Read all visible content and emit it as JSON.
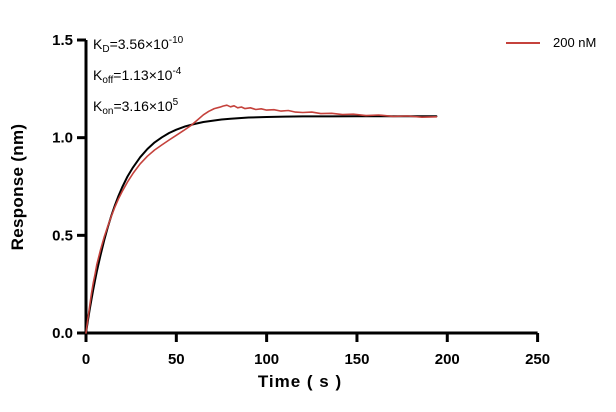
{
  "chart_data": {
    "type": "line",
    "title": "",
    "xlabel": "Time ( s )",
    "ylabel": "Response (nm)",
    "xlim": [
      0,
      250
    ],
    "ylim": [
      0,
      1.5
    ],
    "xticks": [
      "0",
      "50",
      "100",
      "150",
      "200",
      "250"
    ],
    "yticks": [
      "0.0",
      "0.5",
      "1.0",
      "1.5"
    ],
    "grid": false,
    "legend_position": "top-right",
    "axis_color": "#000000",
    "series": [
      {
        "name": "200 nM (observed)",
        "color": "#c5423c",
        "points": [
          [
            0,
            0
          ],
          [
            1,
            0.07
          ],
          [
            2,
            0.135
          ],
          [
            3,
            0.2
          ],
          [
            4,
            0.255
          ],
          [
            5,
            0.3
          ],
          [
            6,
            0.35
          ],
          [
            8,
            0.425
          ],
          [
            10,
            0.49
          ],
          [
            12,
            0.545
          ],
          [
            14,
            0.597
          ],
          [
            16,
            0.645
          ],
          [
            18,
            0.687
          ],
          [
            20,
            0.724
          ],
          [
            23,
            0.773
          ],
          [
            26,
            0.817
          ],
          [
            30,
            0.866
          ],
          [
            34,
            0.905
          ],
          [
            38,
            0.937
          ],
          [
            42,
            0.963
          ],
          [
            46,
            0.988
          ],
          [
            50,
            1.012
          ],
          [
            54,
            1.036
          ],
          [
            58,
            1.062
          ],
          [
            62,
            1.093
          ],
          [
            65,
            1.117
          ],
          [
            68,
            1.135
          ],
          [
            71,
            1.149
          ],
          [
            74,
            1.156
          ],
          [
            76,
            1.162
          ],
          [
            78,
            1.166
          ],
          [
            80,
            1.158
          ],
          [
            82,
            1.163
          ],
          [
            84,
            1.153
          ],
          [
            86,
            1.157
          ],
          [
            88,
            1.149
          ],
          [
            91,
            1.153
          ],
          [
            94,
            1.144
          ],
          [
            97,
            1.148
          ],
          [
            100,
            1.141
          ],
          [
            104,
            1.143
          ],
          [
            108,
            1.136
          ],
          [
            112,
            1.139
          ],
          [
            116,
            1.131
          ],
          [
            120,
            1.129
          ],
          [
            125,
            1.131
          ],
          [
            130,
            1.123
          ],
          [
            136,
            1.125
          ],
          [
            142,
            1.118
          ],
          [
            148,
            1.12
          ],
          [
            155,
            1.113
          ],
          [
            162,
            1.116
          ],
          [
            170,
            1.109
          ],
          [
            178,
            1.111
          ],
          [
            186,
            1.105
          ],
          [
            194,
            1.107
          ]
        ]
      },
      {
        "name": "Fitted curve",
        "color": "#000000",
        "points": [
          [
            0,
            0
          ],
          [
            1,
            0.06
          ],
          [
            2,
            0.117
          ],
          [
            3,
            0.17
          ],
          [
            4,
            0.221
          ],
          [
            5,
            0.269
          ],
          [
            6,
            0.315
          ],
          [
            8,
            0.398
          ],
          [
            10,
            0.473
          ],
          [
            12,
            0.54
          ],
          [
            14,
            0.6
          ],
          [
            16,
            0.654
          ],
          [
            18,
            0.702
          ],
          [
            20,
            0.745
          ],
          [
            23,
            0.801
          ],
          [
            26,
            0.848
          ],
          [
            30,
            0.9
          ],
          [
            34,
            0.942
          ],
          [
            38,
            0.976
          ],
          [
            42,
            1.002
          ],
          [
            46,
            1.024
          ],
          [
            50,
            1.041
          ],
          [
            55,
            1.058
          ],
          [
            60,
            1.07
          ],
          [
            65,
            1.08
          ],
          [
            70,
            1.087
          ],
          [
            75,
            1.093
          ],
          [
            80,
            1.097
          ],
          [
            85,
            1.1
          ],
          [
            90,
            1.103
          ],
          [
            100,
            1.106
          ],
          [
            110,
            1.108
          ],
          [
            120,
            1.109
          ],
          [
            135,
            1.109
          ],
          [
            150,
            1.11
          ],
          [
            165,
            1.11
          ],
          [
            180,
            1.11
          ],
          [
            194,
            1.11
          ]
        ]
      }
    ]
  },
  "annotation": {
    "lines": [
      {
        "segments": [
          {
            "t": "K",
            "s": "n"
          },
          {
            "t": "D",
            "s": "sub"
          },
          {
            "t": "=3.56×10",
            "s": "n"
          },
          {
            "t": "-10",
            "s": "sup"
          }
        ]
      },
      {
        "segments": [
          {
            "t": "K",
            "s": "n"
          },
          {
            "t": "off",
            "s": "sub"
          },
          {
            "t": "=1.13×10",
            "s": "n"
          },
          {
            "t": "-4",
            "s": "sup"
          }
        ]
      },
      {
        "segments": [
          {
            "t": "K",
            "s": "n"
          },
          {
            "t": "on",
            "s": "sub"
          },
          {
            "t": "=3.16×10",
            "s": "n"
          },
          {
            "t": "5",
            "s": "sup"
          }
        ]
      }
    ]
  },
  "legend": {
    "label": "200 nM",
    "color": "#c5423c"
  }
}
